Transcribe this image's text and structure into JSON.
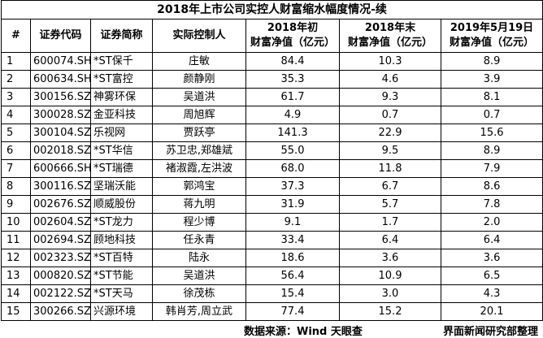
{
  "table": {
    "title": "2018年上市公司实控人财富缩水幅度情况-续",
    "headers": {
      "no": "#",
      "code": "证券代码",
      "name": "证券简称",
      "controller": "实际控制人",
      "start_line1": "2018年初",
      "start_line2": "财富净值（亿元）",
      "end_line1": "2018年末",
      "end_line2": "财富净值（亿元）",
      "may_line1": "2019年5月19日",
      "may_line2": "财富净值（亿元）"
    },
    "rows": [
      {
        "no": "1",
        "code": "600074.SH",
        "name": "*ST保千",
        "controller": "庄敏",
        "start": "84.4",
        "end": "10.3",
        "may": "8.9"
      },
      {
        "no": "2",
        "code": "600634.SH",
        "name": "*ST富控",
        "controller": "颜静刚",
        "start": "35.3",
        "end": "4.6",
        "may": "3.9"
      },
      {
        "no": "3",
        "code": "300156.SZ",
        "name": "神雾环保",
        "controller": "吴道洪",
        "start": "61.7",
        "end": "9.3",
        "may": "8.1"
      },
      {
        "no": "4",
        "code": "300028.SZ",
        "name": "金亚科技",
        "controller": "周旭辉",
        "start": "4.9",
        "end": "0.7",
        "may": "0.7"
      },
      {
        "no": "5",
        "code": "300104.SZ",
        "name": "乐视网",
        "controller": "贾跃亭",
        "start": "141.3",
        "end": "22.9",
        "may": "15.6"
      },
      {
        "no": "6",
        "code": "002018.SZ",
        "name": "*ST华信",
        "controller": "苏卫忠,郑雄斌",
        "start": "55.0",
        "end": "9.5",
        "may": "8.9"
      },
      {
        "no": "7",
        "code": "600666.SH",
        "name": "*ST瑞德",
        "controller": "褚淑霞,左洪波",
        "start": "68.0",
        "end": "11.8",
        "may": "7.9"
      },
      {
        "no": "8",
        "code": "300116.SZ",
        "name": "坚瑞沃能",
        "controller": "郭鸿宝",
        "start": "37.3",
        "end": "6.7",
        "may": "8.6"
      },
      {
        "no": "9",
        "code": "002676.SZ",
        "name": "顺威股份",
        "controller": "蒋九明",
        "start": "31.9",
        "end": "5.7",
        "may": "7.8"
      },
      {
        "no": "10",
        "code": "002604.SZ",
        "name": "*ST龙力",
        "controller": "程少博",
        "start": "9.1",
        "end": "1.7",
        "may": "2.0"
      },
      {
        "no": "11",
        "code": "002694.SZ",
        "name": "顾地科技",
        "controller": "任永青",
        "start": "33.4",
        "end": "6.4",
        "may": "6.4"
      },
      {
        "no": "12",
        "code": "002323.SZ",
        "name": "*ST百特",
        "controller": "陆永",
        "start": "18.6",
        "end": "3.6",
        "may": "3.6"
      },
      {
        "no": "13",
        "code": "000820.SZ",
        "name": "*ST节能",
        "controller": "吴道洪",
        "start": "56.4",
        "end": "10.9",
        "may": "6.5"
      },
      {
        "no": "14",
        "code": "002122.SZ",
        "name": "*ST天马",
        "controller": "徐茂栋",
        "start": "15.4",
        "end": "3.0",
        "may": "4.3"
      },
      {
        "no": "15",
        "code": "300266.SZ",
        "name": "兴源环境",
        "controller": "韩肖芳,周立武",
        "start": "77.4",
        "end": "15.2",
        "may": "20.1"
      }
    ]
  },
  "footer": {
    "source": "数据来源：Wind 天眼查",
    "organizer": "界面新闻研究部整理"
  }
}
